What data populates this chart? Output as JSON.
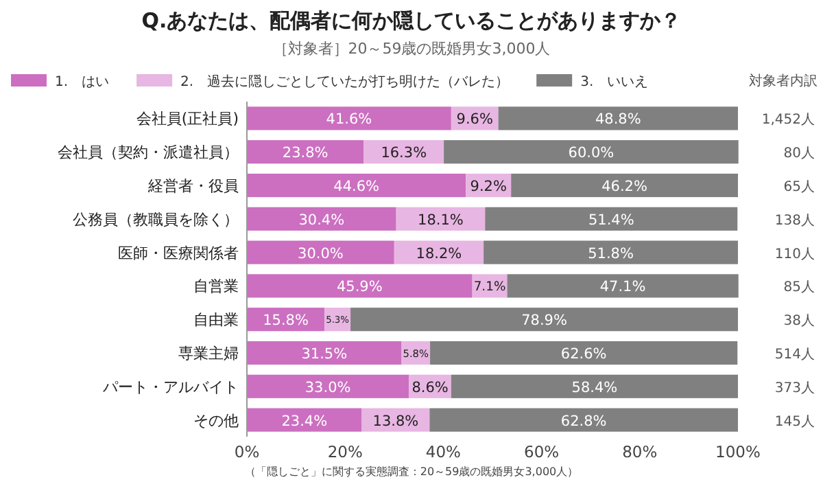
{
  "chart_data": {
    "type": "bar",
    "orientation": "horizontal",
    "stacked": true,
    "title": "Q.あなたは、配偶者に何か隠していることがありますか？",
    "subtitle": "［対象者］20～59歳の既婚男女3,000人",
    "categories": [
      "会社員(正社員)",
      "会社員（契約・派遣社員）",
      "経営者・役員",
      "公務員（教職員を除く）",
      "医師・医療関係者",
      "自営業",
      "自由業",
      "専業主婦",
      "パート・アルバイト",
      "その他"
    ],
    "series": [
      {
        "name": "1.　はい",
        "color": "#cc6fc0",
        "values": [
          41.6,
          23.8,
          44.6,
          30.4,
          30.0,
          45.9,
          15.8,
          31.5,
          33.0,
          23.4
        ],
        "value_labels": [
          "41.6%",
          "23.8%",
          "44.6%",
          "30.4%",
          "30.0%",
          "45.9%",
          "15.8%",
          "31.5%",
          "33.0%",
          "23.4%"
        ]
      },
      {
        "name": "2.　過去に隠しごとしていたが打ち明けた（バレた）",
        "color": "#e8b6e2",
        "values": [
          9.6,
          16.3,
          9.2,
          18.1,
          18.2,
          7.1,
          5.3,
          5.8,
          8.6,
          13.8
        ],
        "value_labels": [
          "9.6%",
          "16.3%",
          "9.2%",
          "18.1%",
          "18.2%",
          "7.1%",
          "5.3%",
          "5.8%",
          "8.6%",
          "13.8%"
        ]
      },
      {
        "name": "3.　いいえ",
        "color": "#808080",
        "values": [
          48.8,
          60.0,
          46.2,
          51.4,
          51.8,
          47.1,
          78.9,
          62.6,
          58.4,
          62.8
        ],
        "value_labels": [
          "48.8%",
          "60.0%",
          "46.2%",
          "51.4%",
          "51.8%",
          "47.1%",
          "78.9%",
          "62.6%",
          "58.4%",
          "62.8%"
        ]
      }
    ],
    "xlim": [
      0,
      100
    ],
    "xticks": [
      {
        "value": 0,
        "label": "0%"
      },
      {
        "value": 20,
        "label": "20%"
      },
      {
        "value": 40,
        "label": "40%"
      },
      {
        "value": 60,
        "label": "60%"
      },
      {
        "value": 80,
        "label": "80%"
      },
      {
        "value": 100,
        "label": "100%"
      }
    ],
    "legend": "top left",
    "annotations": [
      "対象者内訳",
      "1,452人",
      "80人",
      "65人",
      "138人",
      "110人",
      "85人",
      "38人",
      "514人",
      "373人",
      "145人",
      "（「隠しごと」に関する実態調査：20～59歳の既婚男女3,000人）"
    ]
  }
}
